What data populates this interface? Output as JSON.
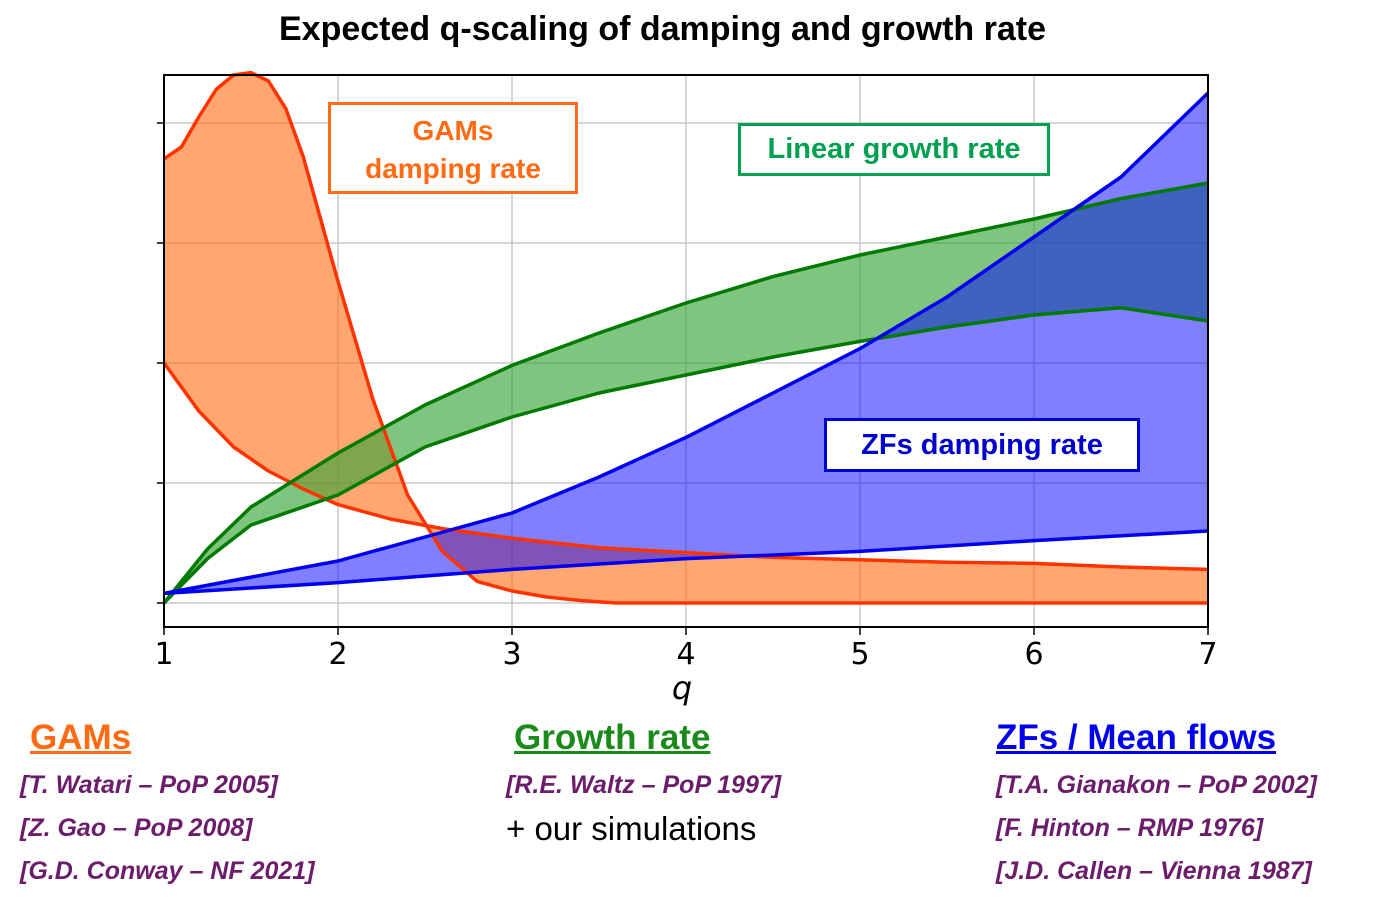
{
  "title": "Expected q-scaling of damping and growth rate",
  "labels": {
    "gam": [
      "GAMs",
      "damping rate"
    ],
    "growth": "Linear growth rate",
    "zf": "ZFs damping rate"
  },
  "colors": {
    "gam_line": "#ff3300",
    "gam_fill": "#ff6a13",
    "growth_line": "#007a00",
    "growth_fill": "#3aa63a",
    "zf_line": "#0000ee",
    "zf_fill": "#0000ff"
  },
  "chart_data": {
    "type": "area",
    "xlabel": "q",
    "ylabel": "",
    "x_ticks": [
      "1",
      "2",
      "3",
      "4",
      "5",
      "6",
      "7"
    ],
    "xlim": [
      1,
      7
    ],
    "ylim": [
      -0.2,
      4.4
    ],
    "y_ticks_shown_as_marks_only": [
      0,
      1,
      2,
      3,
      4
    ],
    "grid": true,
    "series": [
      {
        "name": "GAMs damping rate",
        "upper": {
          "x": [
            1.0,
            1.1,
            1.2,
            1.3,
            1.4,
            1.5,
            1.6,
            1.7,
            1.8,
            1.9,
            2.0,
            2.2,
            2.4,
            2.6,
            2.8,
            3.0,
            3.2,
            3.4,
            3.6,
            4.0,
            5.0,
            6.0,
            7.0
          ],
          "y": [
            3.7,
            3.8,
            4.05,
            4.28,
            4.4,
            4.42,
            4.35,
            4.12,
            3.72,
            3.2,
            2.68,
            1.7,
            0.9,
            0.43,
            0.18,
            0.1,
            0.05,
            0.02,
            0.0,
            0.0,
            0.0,
            0.0,
            0.0
          ]
        },
        "lower": {
          "x": [
            1.0,
            1.2,
            1.4,
            1.6,
            1.8,
            2.0,
            2.3,
            2.6,
            3.0,
            3.5,
            4.0,
            4.5,
            5.0,
            5.5,
            6.0,
            6.5,
            7.0
          ],
          "y": [
            2.0,
            1.6,
            1.3,
            1.1,
            0.95,
            0.82,
            0.7,
            0.62,
            0.54,
            0.46,
            0.42,
            0.38,
            0.36,
            0.34,
            0.33,
            0.3,
            0.28
          ]
        }
      },
      {
        "name": "Linear growth rate",
        "upper": {
          "x": [
            1.0,
            1.25,
            1.5,
            2.0,
            2.5,
            3.0,
            3.5,
            4.0,
            4.5,
            5.0,
            5.5,
            6.0,
            6.5,
            7.0
          ],
          "y": [
            0.0,
            0.45,
            0.8,
            1.25,
            1.65,
            1.98,
            2.25,
            2.5,
            2.72,
            2.9,
            3.05,
            3.2,
            3.37,
            3.5
          ]
        },
        "lower": {
          "x": [
            1.0,
            1.25,
            1.5,
            2.0,
            2.5,
            3.0,
            3.5,
            4.0,
            4.5,
            5.0,
            5.5,
            6.0,
            6.5,
            7.0
          ],
          "y": [
            0.0,
            0.37,
            0.65,
            0.9,
            1.3,
            1.55,
            1.75,
            1.9,
            2.05,
            2.18,
            2.3,
            2.4,
            2.46,
            2.35
          ]
        }
      },
      {
        "name": "ZFs damping rate",
        "upper": {
          "x": [
            1.0,
            2.0,
            2.5,
            3.0,
            3.5,
            4.0,
            4.5,
            5.0,
            5.5,
            6.0,
            6.5,
            7.0
          ],
          "y": [
            0.08,
            0.35,
            0.55,
            0.75,
            1.05,
            1.38,
            1.75,
            2.12,
            2.55,
            3.05,
            3.55,
            4.25
          ]
        },
        "lower": {
          "x": [
            1.0,
            2.0,
            3.0,
            4.0,
            5.0,
            6.0,
            7.0
          ],
          "y": [
            0.08,
            0.17,
            0.28,
            0.37,
            0.43,
            0.52,
            0.6
          ]
        }
      }
    ]
  },
  "references": {
    "gam": {
      "heading": "GAMs",
      "items": [
        "[T. Watari – PoP 2005]",
        "[Z. Gao – PoP 2008]",
        "[G.D. Conway – NF 2021]"
      ]
    },
    "growth": {
      "heading": "Growth rate",
      "items": [
        "[R.E. Waltz – PoP 1997]"
      ],
      "note": "+ our simulations"
    },
    "zf": {
      "heading": "ZFs / Mean flows",
      "items": [
        "[T.A. Gianakon – PoP 2002]",
        "[F. Hinton – RMP 1976]",
        "[J.D. Callen – Vienna 1987]"
      ]
    }
  }
}
